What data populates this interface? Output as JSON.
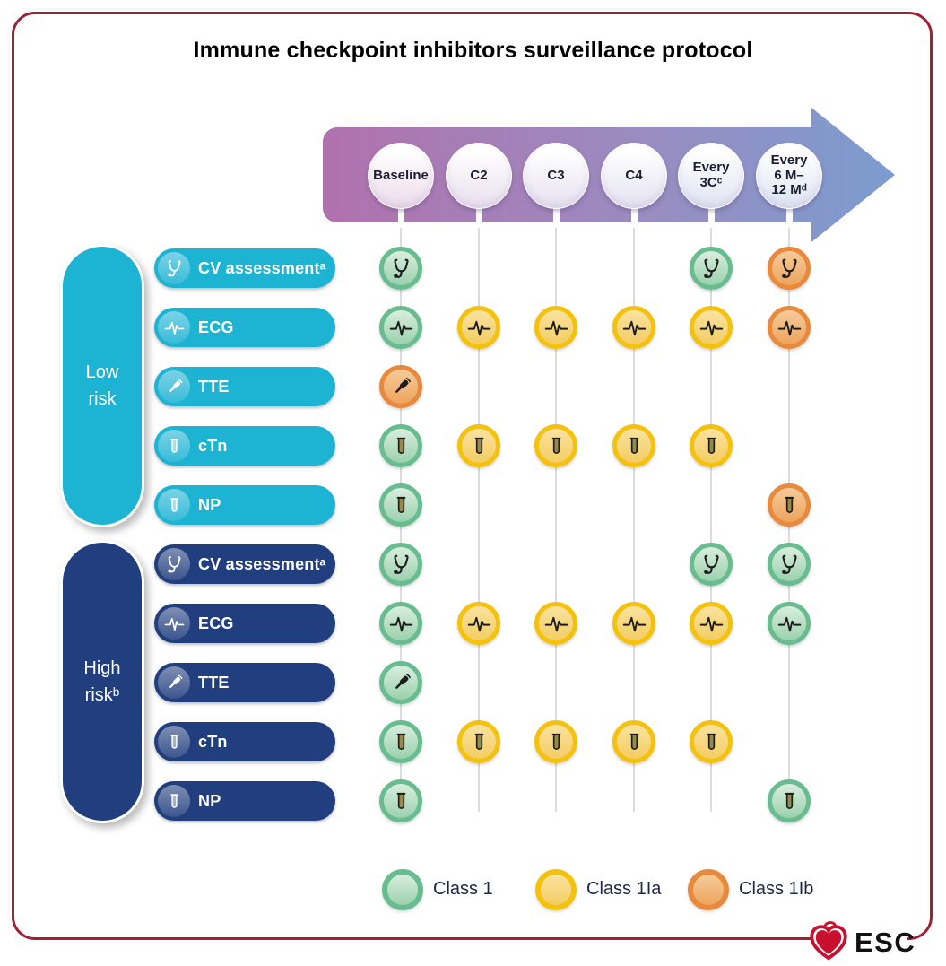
{
  "title": "Immune checkpoint inhibitors surveillance protocol",
  "timeline": {
    "columns": [
      {
        "label": "Baseline"
      },
      {
        "label": "C2"
      },
      {
        "label": "C3"
      },
      {
        "label": "C4"
      },
      {
        "label": "Every\n3Cᶜ"
      },
      {
        "label": "Every\n6 M–\n12 Mᵈ"
      }
    ]
  },
  "groups": [
    {
      "name": "low-risk",
      "label": "Low\nrisk",
      "color": "#1db3d3",
      "rows": [
        {
          "label": "CV assessmentᵃ",
          "icon": "stethoscope-icon",
          "cells": [
            "class1",
            null,
            null,
            null,
            "class1",
            "class2b"
          ]
        },
        {
          "label": "ECG",
          "icon": "ecg-icon",
          "cells": [
            "class1",
            "class2a",
            "class2a",
            "class2a",
            "class2a",
            "class2b"
          ]
        },
        {
          "label": "TTE",
          "icon": "probe-icon",
          "cells": [
            "class2b",
            null,
            null,
            null,
            null,
            null
          ]
        },
        {
          "label": "cTn",
          "icon": "tube-icon",
          "cells": [
            "class1",
            "class2a",
            "class2a",
            "class2a",
            "class2a",
            null
          ]
        },
        {
          "label": "NP",
          "icon": "tube-icon",
          "cells": [
            "class1",
            null,
            null,
            null,
            null,
            "class2b"
          ]
        }
      ]
    },
    {
      "name": "high-risk",
      "label": "High\nriskᵇ",
      "color": "#213e7e",
      "rows": [
        {
          "label": "CV assessmentᵃ",
          "icon": "stethoscope-icon",
          "cells": [
            "class1",
            null,
            null,
            null,
            "class1",
            "class1"
          ]
        },
        {
          "label": "ECG",
          "icon": "ecg-icon",
          "cells": [
            "class1",
            "class2a",
            "class2a",
            "class2a",
            "class2a",
            "class1"
          ]
        },
        {
          "label": "TTE",
          "icon": "probe-icon",
          "cells": [
            "class1",
            null,
            null,
            null,
            null,
            null
          ]
        },
        {
          "label": "cTn",
          "icon": "tube-icon",
          "cells": [
            "class1",
            "class2a",
            "class2a",
            "class2a",
            "class2a",
            null
          ]
        },
        {
          "label": "NP",
          "icon": "tube-icon",
          "cells": [
            "class1",
            null,
            null,
            null,
            null,
            "class1"
          ]
        }
      ]
    }
  ],
  "classes": {
    "class1": {
      "ring": "#68bd90",
      "fill_top": "#d9eedd",
      "fill_bottom": "#9bd1ad"
    },
    "class2a": {
      "ring": "#f4c20d",
      "fill_top": "#fae3a0",
      "fill_bottom": "#f3cd62"
    },
    "class2b": {
      "ring": "#e8893b",
      "fill_top": "#f6cb9a",
      "fill_bottom": "#eda55e"
    }
  },
  "legend": [
    {
      "label": "Class 1",
      "class": "class1"
    },
    {
      "label": "Class 1Ia",
      "class": "class2a"
    },
    {
      "label": "Class 1Ib",
      "class": "class2b"
    }
  ],
  "arrow": {
    "start_color": "#b171ad",
    "mid_color": "#9a8cc0",
    "end_color": "#7b9ccf"
  },
  "frame_color": "#9d2235",
  "logo": {
    "text": "ESC",
    "heart_color": "#c8102e"
  }
}
